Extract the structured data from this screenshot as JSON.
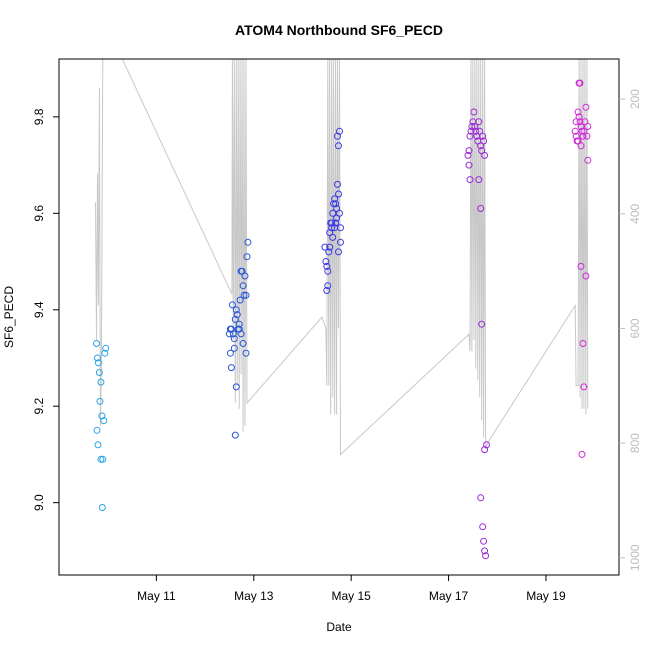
{
  "chart_data": {
    "type": "scatter",
    "title": "ATOM4 Northbound SF6_PECD",
    "xlabel": "Date",
    "ylabel": "SF6_PECD",
    "x_range_days": [
      "2016-05-09T00:00",
      "2016-05-20T12:00"
    ],
    "ylim": [
      8.85,
      9.92
    ],
    "x_ticks": [
      {
        "label": "May 11",
        "day": 11
      },
      {
        "label": "May 13",
        "day": 13
      },
      {
        "label": "May 15",
        "day": 15
      },
      {
        "label": "May 17",
        "day": 17
      },
      {
        "label": "May 19",
        "day": 19
      }
    ],
    "y_ticks": [
      9.0,
      9.2,
      9.4,
      9.6,
      9.8
    ],
    "right_axis": {
      "ticks": [
        200,
        400,
        600,
        800,
        1000
      ],
      "range": [
        130,
        1030
      ],
      "reversed": true,
      "color": "#bdbdbd"
    },
    "series": [
      {
        "color": "#29a3e6",
        "points": [
          [
            9.77,
            9.33
          ],
          [
            9.79,
            9.3
          ],
          [
            9.81,
            9.29
          ],
          [
            9.83,
            9.27
          ],
          [
            9.86,
            9.25
          ],
          [
            9.78,
            9.15
          ],
          [
            9.8,
            9.12
          ],
          [
            9.84,
            9.21
          ],
          [
            9.88,
            9.18
          ],
          [
            9.92,
            9.17
          ],
          [
            9.86,
            9.09
          ],
          [
            9.9,
            9.09
          ],
          [
            9.94,
            9.31
          ],
          [
            9.96,
            9.32
          ],
          [
            9.89,
            8.99
          ]
        ]
      },
      {
        "color": "#2855d8",
        "points": [
          [
            12.5,
            9.35
          ],
          [
            12.52,
            9.36
          ],
          [
            12.54,
            9.36
          ],
          [
            12.56,
            9.41
          ],
          [
            12.58,
            9.35
          ],
          [
            12.6,
            9.34
          ],
          [
            12.62,
            9.38
          ],
          [
            12.64,
            9.4
          ],
          [
            12.66,
            9.39
          ],
          [
            12.68,
            9.36
          ],
          [
            12.7,
            9.37
          ],
          [
            12.72,
            9.42
          ],
          [
            12.74,
            9.48
          ],
          [
            12.76,
            9.48
          ],
          [
            12.78,
            9.45
          ],
          [
            12.8,
            9.43
          ],
          [
            12.82,
            9.47
          ],
          [
            12.84,
            9.43
          ],
          [
            12.86,
            9.51
          ],
          [
            12.88,
            9.54
          ],
          [
            12.52,
            9.31
          ],
          [
            12.54,
            9.28
          ],
          [
            12.6,
            9.32
          ],
          [
            12.64,
            9.24
          ],
          [
            12.78,
            9.33
          ],
          [
            12.84,
            9.31
          ],
          [
            12.62,
            9.14
          ],
          [
            12.7,
            9.36
          ],
          [
            12.74,
            9.35
          ]
        ]
      },
      {
        "color": "#3a3ae6",
        "points": [
          [
            14.46,
            9.53
          ],
          [
            14.48,
            9.5
          ],
          [
            14.5,
            9.49
          ],
          [
            14.52,
            9.48
          ],
          [
            14.54,
            9.52
          ],
          [
            14.56,
            9.56
          ],
          [
            14.58,
            9.58
          ],
          [
            14.6,
            9.57
          ],
          [
            14.62,
            9.6
          ],
          [
            14.64,
            9.62
          ],
          [
            14.66,
            9.63
          ],
          [
            14.68,
            9.62
          ],
          [
            14.7,
            9.61
          ],
          [
            14.72,
            9.66
          ],
          [
            14.74,
            9.64
          ],
          [
            14.76,
            9.6
          ],
          [
            14.78,
            9.57
          ],
          [
            14.52,
            9.45
          ],
          [
            14.5,
            9.44
          ],
          [
            14.56,
            9.53
          ],
          [
            14.6,
            9.58
          ],
          [
            14.66,
            9.57
          ],
          [
            14.7,
            9.59
          ],
          [
            14.72,
            9.76
          ],
          [
            14.74,
            9.74
          ],
          [
            14.76,
            9.77
          ],
          [
            14.74,
            9.52
          ],
          [
            14.78,
            9.54
          ],
          [
            14.62,
            9.55
          ],
          [
            14.68,
            9.58
          ]
        ]
      },
      {
        "color": "#9b2ad8",
        "points": [
          [
            17.4,
            9.72
          ],
          [
            17.42,
            9.73
          ],
          [
            17.44,
            9.76
          ],
          [
            17.46,
            9.77
          ],
          [
            17.48,
            9.78
          ],
          [
            17.5,
            9.79
          ],
          [
            17.52,
            9.81
          ],
          [
            17.54,
            9.78
          ],
          [
            17.56,
            9.77
          ],
          [
            17.58,
            9.76
          ],
          [
            17.6,
            9.75
          ],
          [
            17.62,
            9.79
          ],
          [
            17.64,
            9.77
          ],
          [
            17.66,
            9.74
          ],
          [
            17.68,
            9.73
          ],
          [
            17.7,
            9.76
          ],
          [
            17.72,
            9.75
          ],
          [
            17.74,
            9.72
          ],
          [
            17.42,
            9.7
          ],
          [
            17.44,
            9.67
          ],
          [
            17.62,
            9.67
          ],
          [
            17.66,
            9.61
          ],
          [
            17.68,
            9.37
          ],
          [
            17.74,
            9.11
          ],
          [
            17.78,
            9.12
          ],
          [
            17.66,
            9.01
          ],
          [
            17.7,
            8.95
          ],
          [
            17.72,
            8.92
          ],
          [
            17.74,
            8.9
          ],
          [
            17.76,
            8.89
          ]
        ]
      },
      {
        "color": "#d02ad8",
        "points": [
          [
            19.6,
            9.77
          ],
          [
            19.62,
            9.76
          ],
          [
            19.64,
            9.75
          ],
          [
            19.66,
            9.81
          ],
          [
            19.68,
            9.8
          ],
          [
            19.7,
            9.79
          ],
          [
            19.72,
            9.78
          ],
          [
            19.74,
            9.77
          ],
          [
            19.76,
            9.76
          ],
          [
            19.78,
            9.77
          ],
          [
            19.8,
            9.79
          ],
          [
            19.82,
            9.82
          ],
          [
            19.84,
            9.76
          ],
          [
            19.86,
            9.78
          ],
          [
            19.68,
            9.87
          ],
          [
            19.7,
            9.87
          ],
          [
            19.66,
            9.75
          ],
          [
            19.72,
            9.74
          ],
          [
            19.86,
            9.71
          ],
          [
            19.72,
            9.49
          ],
          [
            19.82,
            9.47
          ],
          [
            19.76,
            9.33
          ],
          [
            19.78,
            9.24
          ],
          [
            19.74,
            9.1
          ],
          [
            19.62,
            9.79
          ]
        ]
      }
    ],
    "pressure_series": {
      "color": "#c8c8c8",
      "units_axis": "right",
      "points": [
        [
          9.75,
          380
        ],
        [
          9.77,
          620
        ],
        [
          9.79,
          330
        ],
        [
          9.81,
          560
        ],
        [
          9.83,
          180
        ],
        [
          9.85,
          770
        ],
        [
          9.87,
          660
        ],
        [
          9.9,
          130
        ],
        [
          9.95,
          130
        ],
        [
          10.3,
          130
        ],
        [
          12.55,
          540
        ],
        [
          12.56,
          130
        ],
        [
          12.58,
          620
        ],
        [
          12.6,
          130
        ],
        [
          12.62,
          730
        ],
        [
          12.64,
          130
        ],
        [
          12.66,
          700
        ],
        [
          12.68,
          130
        ],
        [
          12.7,
          740
        ],
        [
          12.72,
          130
        ],
        [
          12.74,
          680
        ],
        [
          12.76,
          130
        ],
        [
          12.78,
          780
        ],
        [
          12.8,
          130
        ],
        [
          12.82,
          770
        ],
        [
          12.84,
          130
        ],
        [
          12.86,
          730
        ],
        [
          14.4,
          580
        ],
        [
          14.48,
          600
        ],
        [
          14.5,
          700
        ],
        [
          14.52,
          130
        ],
        [
          14.54,
          700
        ],
        [
          14.56,
          130
        ],
        [
          14.58,
          750
        ],
        [
          14.6,
          130
        ],
        [
          14.62,
          720
        ],
        [
          14.64,
          130
        ],
        [
          14.66,
          750
        ],
        [
          14.68,
          130
        ],
        [
          14.7,
          750
        ],
        [
          14.72,
          130
        ],
        [
          14.74,
          600
        ],
        [
          14.76,
          130
        ],
        [
          14.78,
          820
        ],
        [
          17.42,
          610
        ],
        [
          17.44,
          640
        ],
        [
          17.46,
          130
        ],
        [
          17.48,
          640
        ],
        [
          17.5,
          130
        ],
        [
          17.52,
          620
        ],
        [
          17.54,
          130
        ],
        [
          17.56,
          670
        ],
        [
          17.58,
          130
        ],
        [
          17.6,
          690
        ],
        [
          17.62,
          130
        ],
        [
          17.64,
          720
        ],
        [
          17.66,
          130
        ],
        [
          17.68,
          760
        ],
        [
          17.7,
          130
        ],
        [
          17.72,
          790
        ],
        [
          17.74,
          130
        ],
        [
          17.76,
          810
        ],
        [
          17.8,
          800
        ],
        [
          19.6,
          560
        ],
        [
          19.62,
          700
        ],
        [
          19.66,
          700
        ],
        [
          19.68,
          130
        ],
        [
          19.7,
          720
        ],
        [
          19.72,
          130
        ],
        [
          19.74,
          740
        ],
        [
          19.76,
          130
        ],
        [
          19.78,
          740
        ],
        [
          19.8,
          130
        ],
        [
          19.82,
          750
        ],
        [
          19.84,
          130
        ],
        [
          19.86,
          740
        ]
      ]
    }
  }
}
